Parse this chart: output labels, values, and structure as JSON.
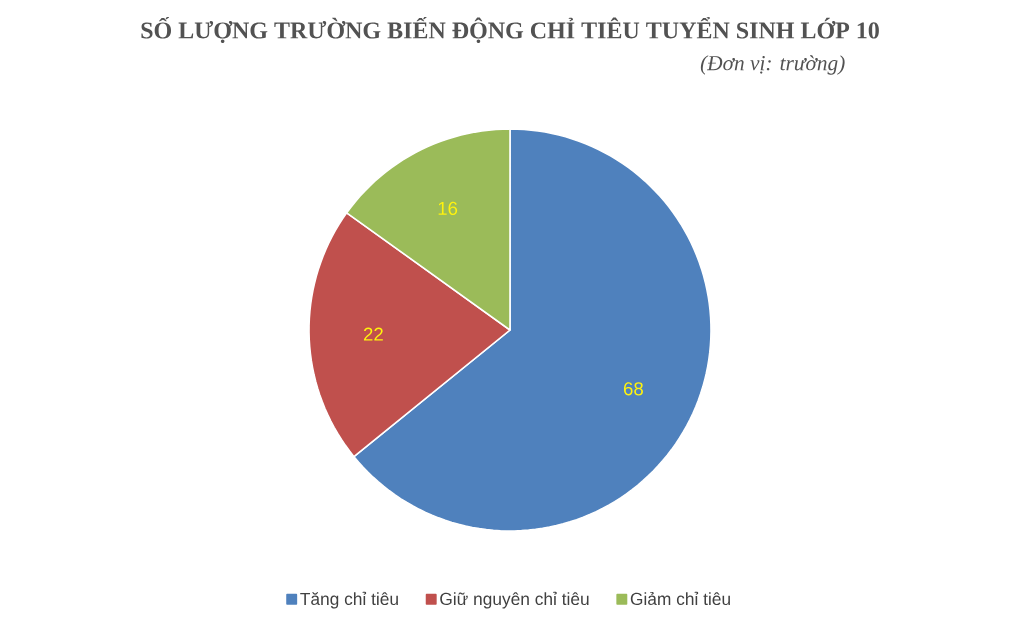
{
  "chart_data": {
    "type": "pie",
    "title": "SỐ LƯỢNG TRƯỜNG BIẾN ĐỘNG CHỈ TIÊU TUYỂN SINH LỚP 10",
    "subtitle": "(Đơn vị: trường)",
    "categories": [
      "Tăng chỉ tiêu",
      "Giữ nguyên chỉ tiêu",
      "Giảm chỉ tiêu"
    ],
    "values": [
      68,
      22,
      16
    ],
    "colors": [
      "#4f81bd",
      "#c0504d",
      "#9bbb59"
    ],
    "data_labels": true,
    "legend": "bottom"
  }
}
